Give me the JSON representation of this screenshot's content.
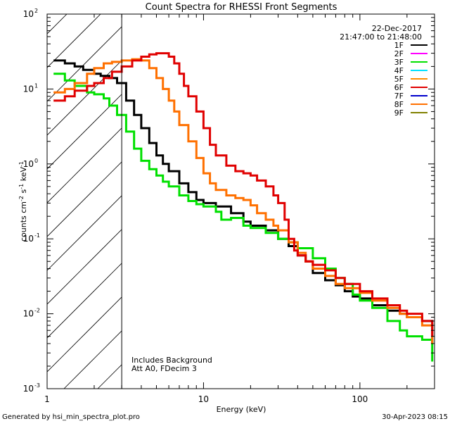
{
  "chart_data": {
    "type": "line",
    "title": "Count Spectra for RHESSI Front Segments",
    "xlabel": "Energy (keV)",
    "ylabel_main": "counts cm",
    "ylabel_exp1": "-2",
    "ylabel_s": " s",
    "ylabel_exp2": "-1",
    "ylabel_kev": " keV",
    "ylabel_exp3": "-1",
    "xscale": "log",
    "yscale": "log",
    "xlim": [
      1,
      300
    ],
    "ylim": [
      0.001,
      100
    ],
    "x_ticks": [
      {
        "value": 1,
        "label": "1"
      },
      {
        "value": 10,
        "label": "10"
      },
      {
        "value": 100,
        "label": "100"
      }
    ],
    "y_ticks": [
      {
        "value": 0.001,
        "base": "10",
        "exp": "-3"
      },
      {
        "value": 0.01,
        "base": "10",
        "exp": "-2"
      },
      {
        "value": 0.1,
        "base": "10",
        "exp": "-1"
      },
      {
        "value": 1,
        "base": "10",
        "exp": "0"
      },
      {
        "value": 10,
        "base": "10",
        "exp": "1"
      },
      {
        "value": 100,
        "base": "10",
        "exp": "2"
      }
    ],
    "date": "22-Dec-2017",
    "time_range": "21:47:00 to 21:48:00",
    "shaded_below_energy": 3,
    "annotation_lines": [
      "Includes Background",
      "Att A0, FDecim 3"
    ],
    "legend": [
      {
        "label": "1F",
        "color": "#000000"
      },
      {
        "label": "2F",
        "color": "#ff00ff"
      },
      {
        "label": "3F",
        "color": "#00e000"
      },
      {
        "label": "4F",
        "color": "#00e0ff"
      },
      {
        "label": "5F",
        "color": "#ff8c00"
      },
      {
        "label": "6F",
        "color": "#e00000"
      },
      {
        "label": "7F",
        "color": "#0000cc"
      },
      {
        "label": "8F",
        "color": "#ff7000"
      },
      {
        "label": "9F",
        "color": "#808000"
      }
    ],
    "series": [
      {
        "name": "1F",
        "color": "#000000",
        "points": [
          [
            1.1,
            24
          ],
          [
            1.3,
            22
          ],
          [
            1.5,
            20
          ],
          [
            1.7,
            18
          ],
          [
            2.0,
            16
          ],
          [
            2.2,
            15
          ],
          [
            2.5,
            14
          ],
          [
            2.8,
            12
          ],
          [
            3.2,
            7
          ],
          [
            3.6,
            4.5
          ],
          [
            4.0,
            3
          ],
          [
            4.5,
            1.9
          ],
          [
            5.0,
            1.3
          ],
          [
            5.5,
            1.0
          ],
          [
            6.0,
            0.8
          ],
          [
            7,
            0.55
          ],
          [
            8,
            0.42
          ],
          [
            9,
            0.33
          ],
          [
            10,
            0.3
          ],
          [
            12,
            0.27
          ],
          [
            15,
            0.22
          ],
          [
            18,
            0.17
          ],
          [
            20,
            0.15
          ],
          [
            25,
            0.13
          ],
          [
            30,
            0.1
          ],
          [
            35,
            0.08
          ],
          [
            40,
            0.06
          ],
          [
            45,
            0.05
          ],
          [
            50,
            0.035
          ],
          [
            60,
            0.028
          ],
          [
            70,
            0.024
          ],
          [
            80,
            0.02
          ],
          [
            90,
            0.017
          ],
          [
            100,
            0.016
          ],
          [
            120,
            0.013
          ],
          [
            150,
            0.011
          ],
          [
            180,
            0.01
          ],
          [
            200,
            0.009
          ],
          [
            250,
            0.008
          ],
          [
            290,
            0.004
          ]
        ]
      },
      {
        "name": "3F",
        "color": "#00e000",
        "points": [
          [
            1.1,
            16
          ],
          [
            1.3,
            13
          ],
          [
            1.5,
            11
          ],
          [
            1.8,
            9
          ],
          [
            2.0,
            8.5
          ],
          [
            2.3,
            7.5
          ],
          [
            2.5,
            6
          ],
          [
            2.8,
            4.5
          ],
          [
            3.2,
            2.7
          ],
          [
            3.6,
            1.6
          ],
          [
            4.0,
            1.1
          ],
          [
            4.5,
            0.85
          ],
          [
            5.0,
            0.7
          ],
          [
            5.5,
            0.58
          ],
          [
            6.0,
            0.5
          ],
          [
            7,
            0.38
          ],
          [
            8,
            0.32
          ],
          [
            9,
            0.29
          ],
          [
            10,
            0.27
          ],
          [
            12,
            0.23
          ],
          [
            13,
            0.18
          ],
          [
            15,
            0.19
          ],
          [
            18,
            0.15
          ],
          [
            20,
            0.14
          ],
          [
            25,
            0.12
          ],
          [
            30,
            0.1
          ],
          [
            35,
            0.09
          ],
          [
            40,
            0.075
          ],
          [
            50,
            0.055
          ],
          [
            60,
            0.04
          ],
          [
            70,
            0.03
          ],
          [
            80,
            0.025
          ],
          [
            90,
            0.018
          ],
          [
            100,
            0.015
          ],
          [
            120,
            0.012
          ],
          [
            150,
            0.008
          ],
          [
            180,
            0.006
          ],
          [
            200,
            0.005
          ],
          [
            250,
            0.0045
          ],
          [
            290,
            0.0023
          ]
        ]
      },
      {
        "name": "8F",
        "color": "#ff7000",
        "points": [
          [
            1.1,
            9
          ],
          [
            1.3,
            10
          ],
          [
            1.5,
            12
          ],
          [
            1.8,
            16
          ],
          [
            2.0,
            19
          ],
          [
            2.3,
            22
          ],
          [
            2.6,
            23
          ],
          [
            3.0,
            24
          ],
          [
            3.5,
            25
          ],
          [
            4.0,
            24
          ],
          [
            4.5,
            19
          ],
          [
            5.0,
            14
          ],
          [
            5.5,
            10
          ],
          [
            6.0,
            7
          ],
          [
            6.5,
            5
          ],
          [
            7,
            3.3
          ],
          [
            8,
            2.0
          ],
          [
            9,
            1.2
          ],
          [
            10,
            0.75
          ],
          [
            11,
            0.55
          ],
          [
            12,
            0.45
          ],
          [
            14,
            0.38
          ],
          [
            16,
            0.35
          ],
          [
            18,
            0.33
          ],
          [
            20,
            0.28
          ],
          [
            22,
            0.22
          ],
          [
            25,
            0.18
          ],
          [
            28,
            0.15
          ],
          [
            30,
            0.13
          ],
          [
            35,
            0.09
          ],
          [
            40,
            0.065
          ],
          [
            45,
            0.05
          ],
          [
            50,
            0.04
          ],
          [
            60,
            0.032
          ],
          [
            70,
            0.025
          ],
          [
            80,
            0.022
          ],
          [
            100,
            0.019
          ],
          [
            120,
            0.015
          ],
          [
            150,
            0.012
          ],
          [
            180,
            0.01
          ],
          [
            200,
            0.009
          ],
          [
            250,
            0.007
          ],
          [
            290,
            0.004
          ]
        ]
      },
      {
        "name": "6F",
        "color": "#e00000",
        "points": [
          [
            1.1,
            7
          ],
          [
            1.3,
            8
          ],
          [
            1.5,
            9.5
          ],
          [
            1.8,
            11
          ],
          [
            2.0,
            12
          ],
          [
            2.3,
            14
          ],
          [
            2.6,
            17
          ],
          [
            3.0,
            20
          ],
          [
            3.5,
            24
          ],
          [
            4.0,
            27
          ],
          [
            4.5,
            29
          ],
          [
            5.0,
            30
          ],
          [
            5.5,
            30
          ],
          [
            6.0,
            27
          ],
          [
            6.5,
            22
          ],
          [
            7,
            16
          ],
          [
            7.5,
            11
          ],
          [
            8,
            8
          ],
          [
            9,
            5
          ],
          [
            10,
            3
          ],
          [
            11,
            1.8
          ],
          [
            12,
            1.3
          ],
          [
            14,
            0.95
          ],
          [
            16,
            0.8
          ],
          [
            18,
            0.75
          ],
          [
            20,
            0.7
          ],
          [
            22,
            0.6
          ],
          [
            25,
            0.5
          ],
          [
            28,
            0.38
          ],
          [
            30,
            0.3
          ],
          [
            33,
            0.18
          ],
          [
            35,
            0.1
          ],
          [
            38,
            0.07
          ],
          [
            40,
            0.06
          ],
          [
            45,
            0.05
          ],
          [
            50,
            0.045
          ],
          [
            60,
            0.038
          ],
          [
            70,
            0.03
          ],
          [
            80,
            0.025
          ],
          [
            100,
            0.02
          ],
          [
            120,
            0.016
          ],
          [
            150,
            0.013
          ],
          [
            180,
            0.011
          ],
          [
            200,
            0.01
          ],
          [
            250,
            0.008
          ],
          [
            290,
            0.005
          ]
        ]
      }
    ]
  },
  "footer": {
    "left": "Generated by hsi_min_spectra_plot.pro",
    "right": "30-Apr-2023 08:15"
  }
}
